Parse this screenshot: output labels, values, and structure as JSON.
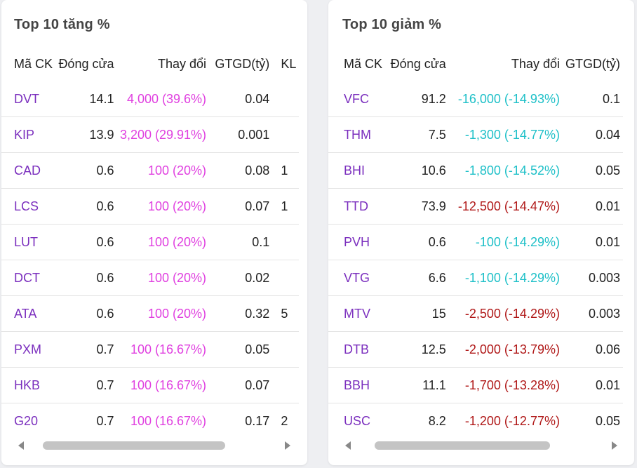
{
  "gainers": {
    "title": "Top 10 tăng %",
    "headers": {
      "code": "Mã CK",
      "close": "Đóng cửa",
      "change": "Thay đổi",
      "value": "GTGD(tỷ)",
      "volume": "KL"
    },
    "rows": [
      {
        "code": "DVT",
        "close": "14.1",
        "change": "4,000 (39.6%)",
        "value": "0.04",
        "volume": "",
        "color": "up"
      },
      {
        "code": "KIP",
        "close": "13.9",
        "change": "3,200 (29.91%)",
        "value": "0.001",
        "volume": "",
        "color": "up"
      },
      {
        "code": "CAD",
        "close": "0.6",
        "change": "100 (20%)",
        "value": "0.08",
        "volume": "1",
        "color": "up"
      },
      {
        "code": "LCS",
        "close": "0.6",
        "change": "100 (20%)",
        "value": "0.07",
        "volume": "1",
        "color": "up"
      },
      {
        "code": "LUT",
        "close": "0.6",
        "change": "100 (20%)",
        "value": "0.1",
        "volume": "",
        "color": "up"
      },
      {
        "code": "DCT",
        "close": "0.6",
        "change": "100 (20%)",
        "value": "0.02",
        "volume": "",
        "color": "up"
      },
      {
        "code": "ATA",
        "close": "0.6",
        "change": "100 (20%)",
        "value": "0.32",
        "volume": "5",
        "color": "up"
      },
      {
        "code": "PXM",
        "close": "0.7",
        "change": "100 (16.67%)",
        "value": "0.05",
        "volume": "",
        "color": "up"
      },
      {
        "code": "HKB",
        "close": "0.7",
        "change": "100 (16.67%)",
        "value": "0.07",
        "volume": "",
        "color": "up"
      },
      {
        "code": "G20",
        "close": "0.7",
        "change": "100 (16.67%)",
        "value": "0.17",
        "volume": "2",
        "color": "up"
      }
    ],
    "scroll_position": 0.18
  },
  "losers": {
    "title": "Top 10 giảm %",
    "headers": {
      "code": "Mã CK",
      "close": "Đóng cửa",
      "change": "Thay đổi",
      "value": "GTGD(tỷ)"
    },
    "rows": [
      {
        "code": "VFC",
        "close": "91.2",
        "change": "-16,000 (-14.93%)",
        "value": "0.1",
        "color": "down-cyan"
      },
      {
        "code": "THM",
        "close": "7.5",
        "change": "-1,300 (-14.77%)",
        "value": "0.04",
        "color": "down-cyan"
      },
      {
        "code": "BHI",
        "close": "10.6",
        "change": "-1,800 (-14.52%)",
        "value": "0.05",
        "color": "down-cyan"
      },
      {
        "code": "TTD",
        "close": "73.9",
        "change": "-12,500 (-14.47%)",
        "value": "0.01",
        "color": "down-red"
      },
      {
        "code": "PVH",
        "close": "0.6",
        "change": "-100 (-14.29%)",
        "value": "0.01",
        "color": "down-cyan"
      },
      {
        "code": "VTG",
        "close": "6.6",
        "change": "-1,100 (-14.29%)",
        "value": "0.003",
        "color": "down-cyan"
      },
      {
        "code": "MTV",
        "close": "15",
        "change": "-2,500 (-14.29%)",
        "value": "0.003",
        "color": "down-red"
      },
      {
        "code": "DTB",
        "close": "12.5",
        "change": "-2,000 (-13.79%)",
        "value": "0.06",
        "color": "down-red"
      },
      {
        "code": "BBH",
        "close": "11.1",
        "change": "-1,700 (-13.28%)",
        "value": "0.01",
        "color": "down-red"
      },
      {
        "code": "USC",
        "close": "8.2",
        "change": "-1,200 (-12.77%)",
        "value": "0.05",
        "color": "down-red"
      }
    ],
    "scroll_position": 0.24
  },
  "colors": {
    "code": "#7b2fbe",
    "up": "#e040e0",
    "down_cyan": "#1ec0c8",
    "down_red": "#b01818"
  }
}
